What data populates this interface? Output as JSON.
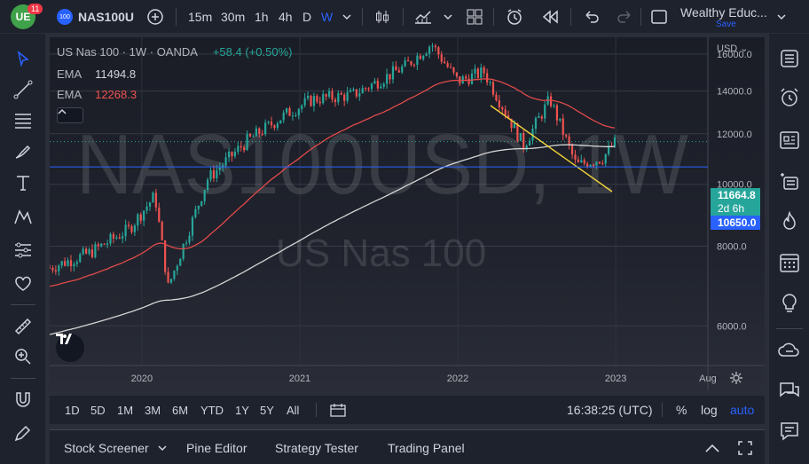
{
  "topbar": {
    "notification_count": "11",
    "symbol_badge": "100",
    "symbol": "NAS100U",
    "intervals": [
      "15m",
      "30m",
      "1h",
      "4h",
      "D",
      "W"
    ],
    "active_interval": "W",
    "layout_name": "Wealthy Educ...",
    "save_label": "Save"
  },
  "chart": {
    "legend_title": "US Nas 100 · 1W · OANDA",
    "legend_change": "+58.4 (+0.50%)",
    "ema1_label": "EMA",
    "ema1_value": "11494.8",
    "ema2_label": "EMA",
    "ema2_value": "12268.3",
    "watermark_symbol": "NAS100USD, 1W",
    "watermark_name": "US Nas 100",
    "currency": "USD",
    "price_axis": [
      "16000.0",
      "14000.0",
      "12000.0",
      "10000.0",
      "8000.0",
      "6000.0"
    ],
    "time_axis": [
      "2020",
      "2021",
      "2022",
      "2023",
      "Aug"
    ],
    "last_price": "11664.8",
    "countdown": "2d 6h",
    "hline_price": "10650.0",
    "colors": {
      "up": "#26a69a",
      "down": "#ef5350",
      "ema_fast": "#d4d4d4",
      "ema_slow": "#e04a4a",
      "trendline": "#f0d43a",
      "hline": "#2962ff"
    }
  },
  "chart_data": {
    "type": "candlestick",
    "symbol": "NAS100USD",
    "interval": "1W",
    "x_range": [
      "2019-06",
      "2023-08"
    ],
    "ylim": [
      5200,
      17000
    ],
    "y_scale": "log",
    "price_path": [
      [
        "2019-06",
        7400
      ],
      [
        "2019-09",
        7800
      ],
      [
        "2019-12",
        8500
      ],
      [
        "2020-02",
        9600
      ],
      [
        "2020-03",
        6900
      ],
      [
        "2020-06",
        10200
      ],
      [
        "2020-09",
        11700
      ],
      [
        "2020-12",
        12900
      ],
      [
        "2021-02",
        13600
      ],
      [
        "2021-05",
        13800
      ],
      [
        "2021-09",
        15300
      ],
      [
        "2021-11",
        16600
      ],
      [
        "2022-01",
        14500
      ],
      [
        "2022-03",
        15000
      ],
      [
        "2022-06",
        11500
      ],
      [
        "2022-08",
        13600
      ],
      [
        "2022-10",
        10700
      ],
      [
        "2022-12",
        11000
      ],
      [
        "2023-01",
        11660
      ]
    ],
    "indicators": [
      {
        "type": "EMA",
        "value": 11494.8
      },
      {
        "type": "EMA",
        "value": 12268.3
      }
    ],
    "horizontal_line": 10650.0,
    "last_price": 11664.8
  },
  "rangebar": {
    "ranges": [
      "1D",
      "5D",
      "1M",
      "3M",
      "6M",
      "YTD",
      "1Y",
      "5Y",
      "All"
    ],
    "clock": "16:38:25 (UTC)",
    "percent_label": "%",
    "log_label": "log",
    "auto_label": "auto"
  },
  "bottom": {
    "tabs": [
      "Stock Screener",
      "Pine Editor",
      "Strategy Tester",
      "Trading Panel"
    ]
  }
}
